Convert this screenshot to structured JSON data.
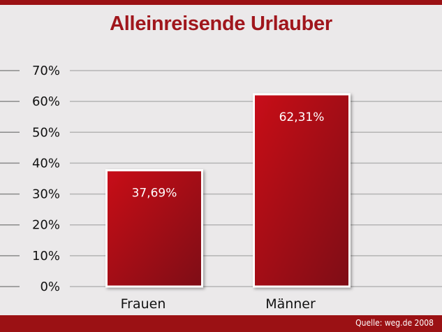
{
  "chart_data": {
    "type": "bar",
    "title": "Alleinreisende Urlauber",
    "categories": [
      "Frauen",
      "Männer"
    ],
    "values": [
      37.69,
      62.31
    ],
    "data_labels": [
      "37,69%",
      "62,31%"
    ],
    "y_ticks": [
      "0%",
      "10%",
      "20%",
      "30%",
      "40%",
      "50%",
      "60%",
      "70%"
    ],
    "ylim": [
      0,
      70
    ],
    "grid": true,
    "bar_color": "#c8101a",
    "bar_color_dark": "#7e0a12"
  },
  "footer": {
    "source": "Quelle: weg.de 2008"
  },
  "colors": {
    "band": "#9b1114",
    "title": "#a0161c",
    "background": "#ebe9ea"
  }
}
